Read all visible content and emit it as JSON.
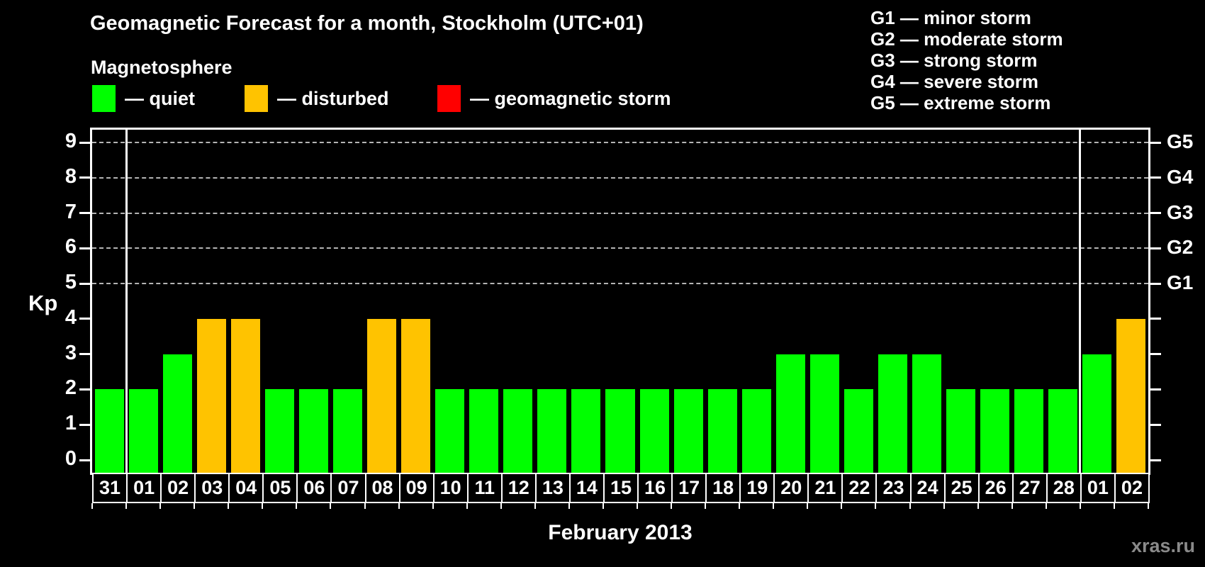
{
  "title": "Geomagnetic Forecast for a month, Stockholm (UTC+01)",
  "subtitle": "Magnetosphere",
  "legend": {
    "items": [
      {
        "name": "quiet",
        "label": "— quiet",
        "color": "#00ff00"
      },
      {
        "name": "disturbed",
        "label": "— disturbed",
        "color": "#ffc300"
      },
      {
        "name": "storm",
        "label": "— geomagnetic storm",
        "color": "#ff0000"
      }
    ]
  },
  "g_legend": [
    "G1 — minor storm",
    "G2 — moderate storm",
    "G3 — strong storm",
    "G4 — severe storm",
    "G5 — extreme storm"
  ],
  "watermark": "xras.ru",
  "colors": {
    "quiet": "#00ff00",
    "disturbed": "#ffc300",
    "storm": "#ff0000",
    "axis": "#ffffff",
    "grid": "#b4b4b4",
    "background": "#000000",
    "watermark": "#8a8a8a"
  },
  "chart_data": {
    "type": "bar",
    "title": "Geomagnetic Forecast for a month, Stockholm (UTC+01)",
    "xlabel": "February 2013",
    "ylabel": "Kp",
    "ylim": [
      0,
      9
    ],
    "yticks": [
      0,
      1,
      2,
      3,
      4,
      5,
      6,
      7,
      8,
      9
    ],
    "gridlines_at": [
      5,
      6,
      7,
      8,
      9
    ],
    "grid": "dashed horizontal at Kp 5-9 only",
    "legend_position": "top-left and top-right",
    "right_axis_labels": [
      {
        "kp": 5,
        "label": "G1"
      },
      {
        "kp": 6,
        "label": "G2"
      },
      {
        "kp": 7,
        "label": "G3"
      },
      {
        "kp": 8,
        "label": "G4"
      },
      {
        "kp": 9,
        "label": "G5"
      }
    ],
    "categories": [
      "31",
      "01",
      "02",
      "03",
      "04",
      "05",
      "06",
      "07",
      "08",
      "09",
      "10",
      "11",
      "12",
      "13",
      "14",
      "15",
      "16",
      "17",
      "18",
      "19",
      "20",
      "21",
      "22",
      "23",
      "24",
      "25",
      "26",
      "27",
      "28",
      "01",
      "02"
    ],
    "values": [
      2,
      2,
      3,
      4,
      4,
      2,
      2,
      2,
      4,
      4,
      2,
      2,
      2,
      2,
      2,
      2,
      2,
      2,
      2,
      2,
      3,
      3,
      2,
      3,
      3,
      2,
      2,
      2,
      2,
      3,
      4
    ],
    "statuses": [
      "quiet",
      "quiet",
      "quiet",
      "disturbed",
      "disturbed",
      "quiet",
      "quiet",
      "quiet",
      "disturbed",
      "disturbed",
      "quiet",
      "quiet",
      "quiet",
      "quiet",
      "quiet",
      "quiet",
      "quiet",
      "quiet",
      "quiet",
      "quiet",
      "quiet",
      "quiet",
      "quiet",
      "quiet",
      "quiet",
      "quiet",
      "quiet",
      "quiet",
      "quiet",
      "quiet",
      "disturbed"
    ],
    "separators_after_index": [
      0,
      28
    ]
  }
}
